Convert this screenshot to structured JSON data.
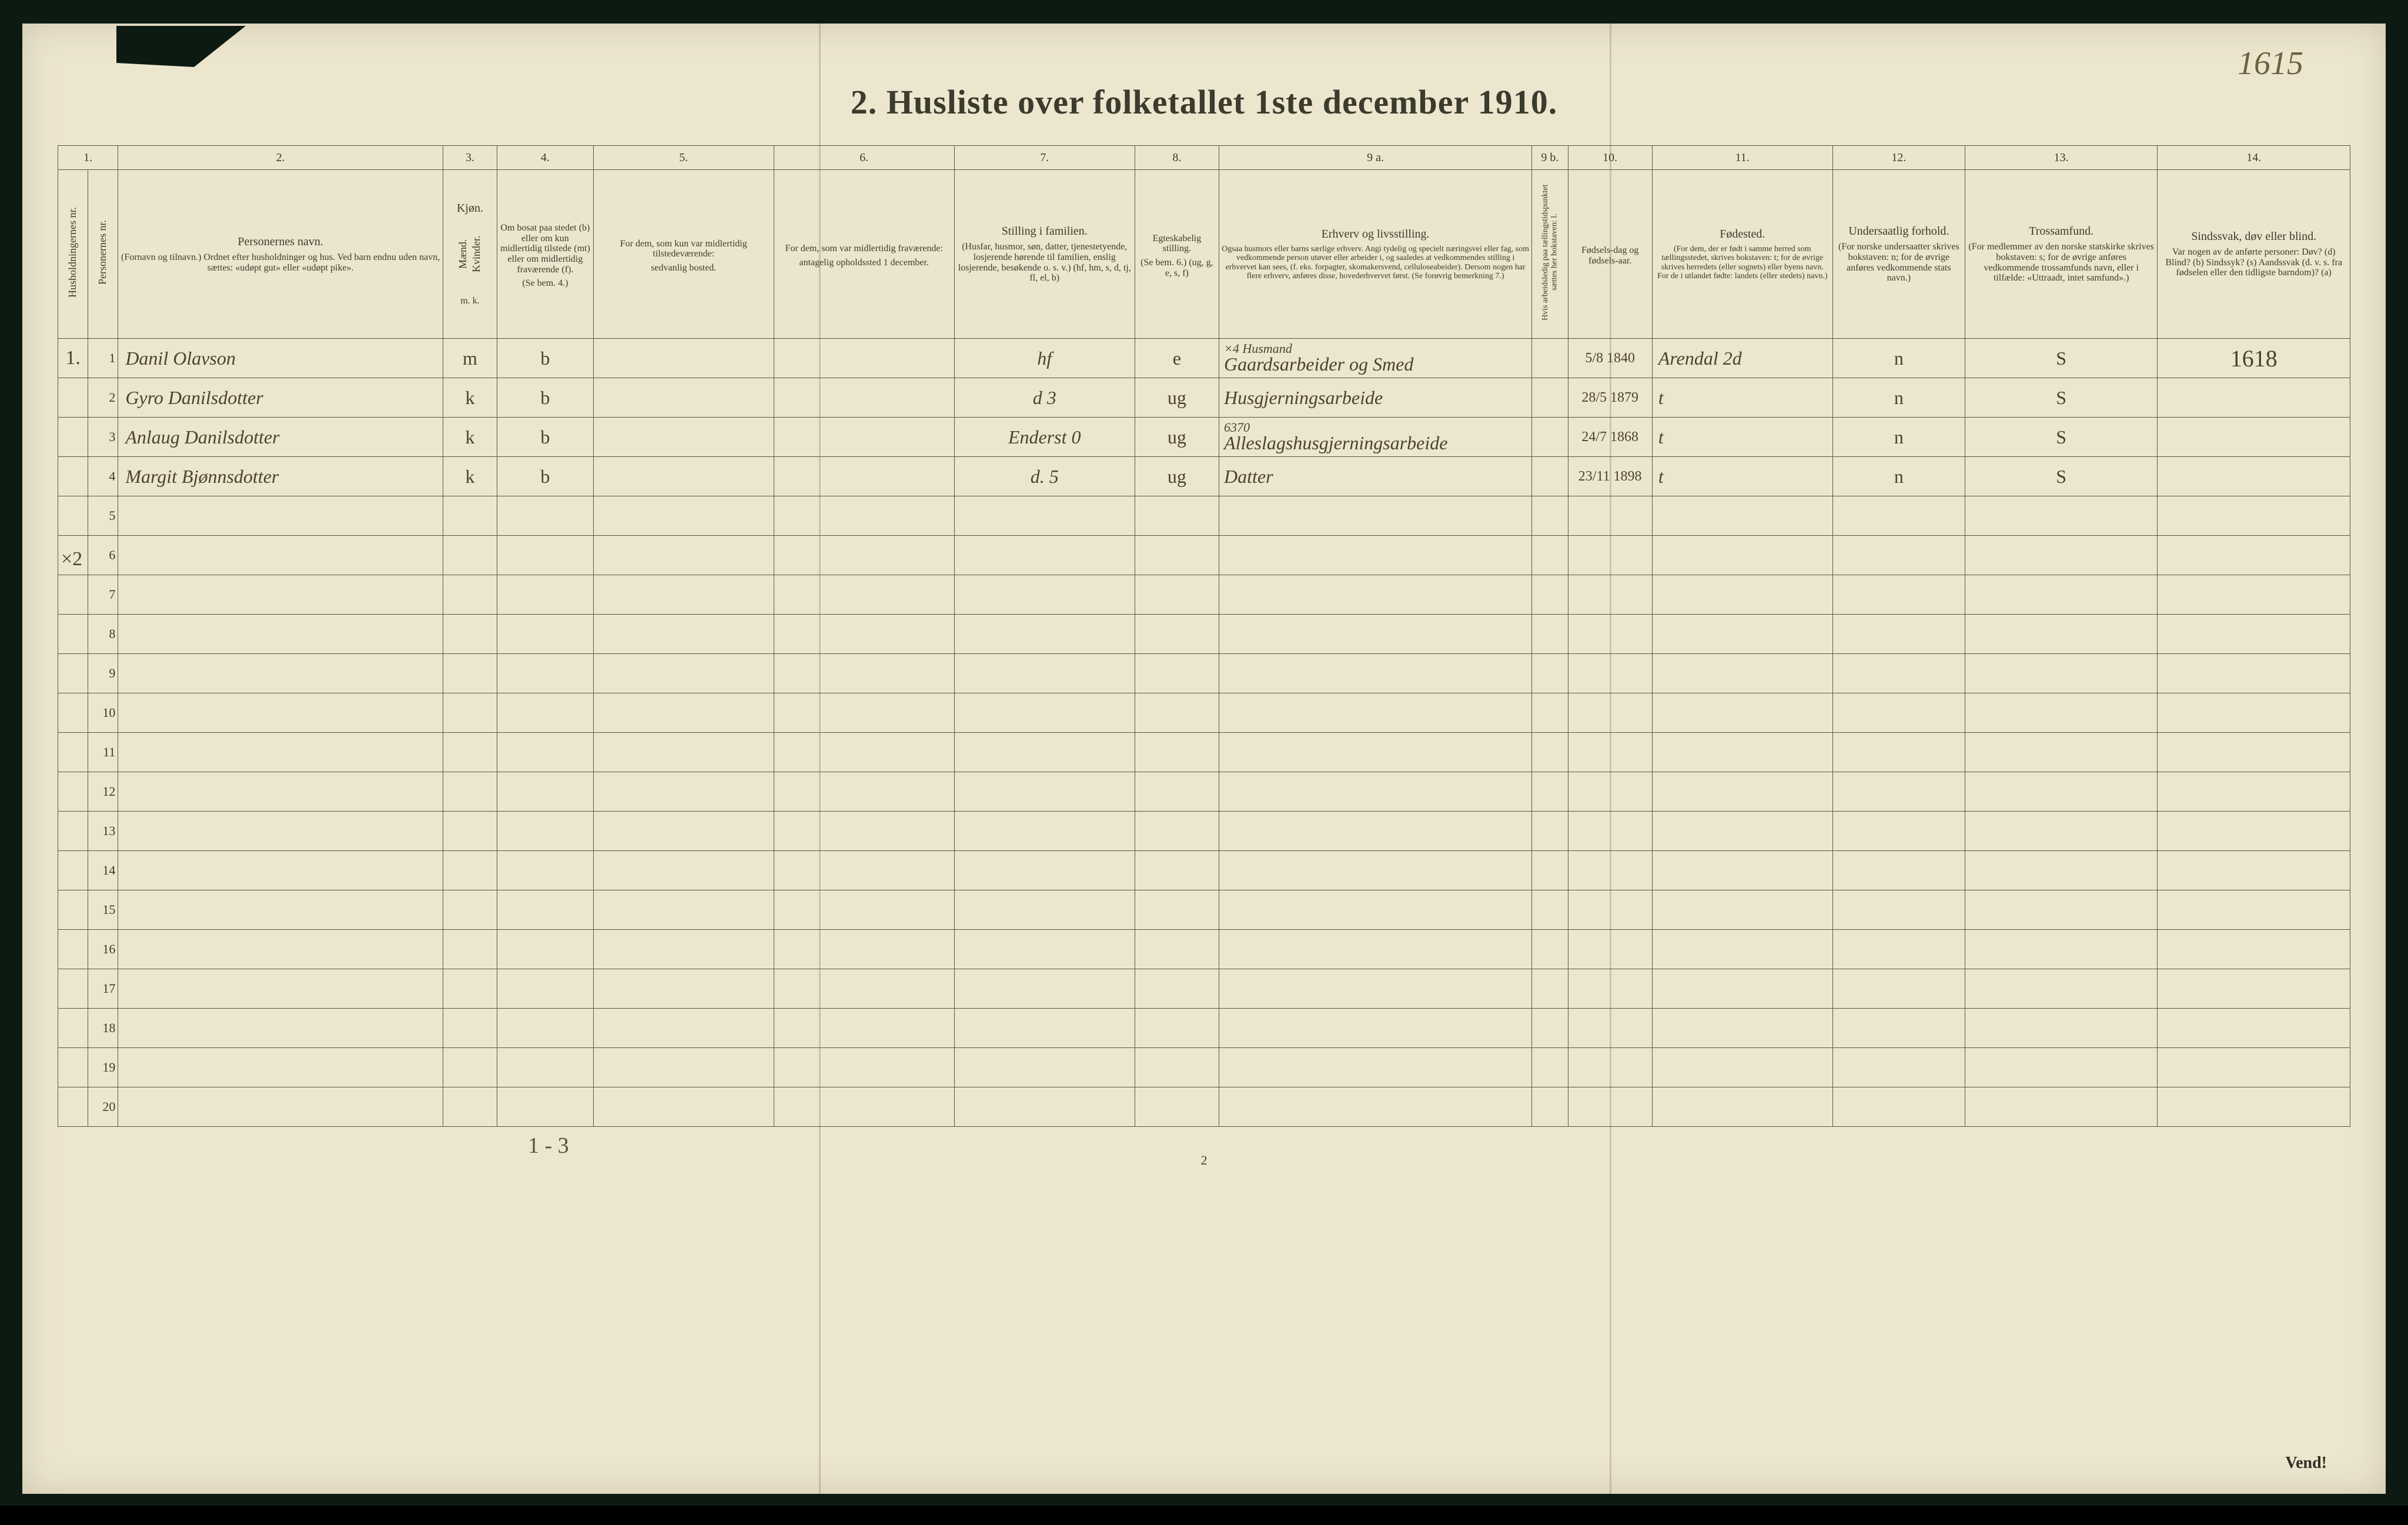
{
  "page": {
    "handwritten_top_right": "1615",
    "title": "2.  Husliste over folketallet 1ste december 1910.",
    "foot_page_number": "2",
    "vend": "Vend!",
    "bottom_pencil": "1 - 3",
    "margin_mark_left": "×2",
    "stamp_number": "1618"
  },
  "columns": {
    "numbers": [
      "1.",
      "2.",
      "3.",
      "4.",
      "5.",
      "6.",
      "7.",
      "8.",
      "9 a.",
      "9 b.",
      "10.",
      "11.",
      "12.",
      "13.",
      "14."
    ],
    "h1_split_a": "Husholdningernes nr.",
    "h1_split_b": "Personernes nr.",
    "h2": "Personernes navn.",
    "h2_note": "(Fornavn og tilnavn.)  Ordnet efter husholdninger og hus.  Ved barn endnu uden navn, sættes: «udøpt gut» eller «udøpt pike».",
    "h3": "Kjøn.",
    "h3_m": "Mænd.",
    "h3_k": "Kvinder.",
    "h3_sub": "m.  k.",
    "h4": "Om bosat paa stedet (b) eller om kun midlertidig tilstede (mt) eller om midlertidig fraværende (f).",
    "h4_note": "(Se bem. 4.)",
    "h5": "For dem, som kun var midlertidig tilstedeværende:",
    "h5_note": "sedvanlig bosted.",
    "h6": "For dem, som var midlertidig fraværende:",
    "h6_note": "antagelig opholdssted 1 december.",
    "h7": "Stilling i familien.",
    "h7_note": "(Husfar, husmor, søn, datter, tjenestetyende, losjerende hørende til familien, enslig losjerende, besøkende o. s. v.)  (hf, hm, s, d, tj, fl, el, b)",
    "h8": "Egteskabelig stilling.",
    "h8_note": "(Se bem. 6.)  (ug, g, e, s, f)",
    "h9a": "Erhverv og livsstilling.",
    "h9a_note": "Ogsaa husmors eller barns særlige erhverv.  Angi tydelig og specielt næringsvei eller fag, som vedkommende person utøver eller arbeider i, og saaledes at vedkommendes stilling i erhvervet kan sees, (f. eks. forpagter, skomakersvend, celluloseabeider).  Dersom nogen har flere erhverv, anføres disse, hovederhvervet først.  (Se forøvrig bemerkning 7.)",
    "h9b": "Hvis arbeidsledig paa tællingstidspunktet sættes her bokstaven: l.",
    "h10": "Fødsels-dag og fødsels-aar.",
    "h11": "Fødested.",
    "h11_note": "(For dem, der er født i samme herred som tællingsstedet, skrives bokstaven: t; for de øvrige skrives herredets (eller sognets) eller byens navn.  For de i utlandet fødte: landets (eller stedets) navn.)",
    "h12": "Undersaatlig forhold.",
    "h12_note": "(For norske undersaatter skrives bokstaven: n; for de øvrige anføres vedkommende stats navn.)",
    "h13": "Trossamfund.",
    "h13_note": "(For medlemmer av den norske statskirke skrives bokstaven: s; for de øvrige anføres vedkommende trossamfunds navn, eller i tilfælde: «Uttraadt, intet samfund».)",
    "h14": "Sindssvak, døv eller blind.",
    "h14_note": "Var nogen av de anførte personer:  Døv? (d)  Blind? (b)  Sindssyk? (s)  Aandssvak (d. v. s. fra fødselen eller den tidligste barndom)? (a)"
  },
  "rows": [
    {
      "hh": "1.",
      "pn": "1",
      "name": "Danil Olavson",
      "sex": "m",
      "res": "b",
      "col5": "",
      "col6": "",
      "fam": "hf",
      "eg": "e",
      "occ_top": "×4 Husmand",
      "occ": "Gaardsarbeider og Smed",
      "b9b": "",
      "bdate": "5/8 1840",
      "bplace": "Arendal 2d",
      "c12": "n",
      "c13": "S",
      "c14": ""
    },
    {
      "hh": "",
      "pn": "2",
      "name": "Gyro Danilsdotter",
      "sex": "k",
      "res": "b",
      "col5": "",
      "col6": "",
      "fam": "d      3",
      "eg": "ug",
      "occ_top": "",
      "occ": "Husgjerningsarbeide",
      "b9b": "",
      "bdate": "28/5 1879",
      "bplace": "t",
      "c12": "n",
      "c13": "S",
      "c14": ""
    },
    {
      "hh": "",
      "pn": "3",
      "name": "Anlaug Danilsdotter",
      "sex": "k",
      "res": "b",
      "col5": "",
      "col6": "",
      "fam": "Enderst   0",
      "eg": "ug",
      "occ_top": "6370",
      "occ": "Alleslagshusgjerningsarbeide",
      "b9b": "",
      "bdate": "24/7 1868",
      "bplace": "t",
      "c12": "n",
      "c13": "S",
      "c14": ""
    },
    {
      "hh": "",
      "pn": "4",
      "name": "Margit Bjønnsdotter",
      "sex": "k",
      "res": "b",
      "col5": "",
      "col6": "",
      "fam": "d.     5",
      "eg": "ug",
      "occ_top": "",
      "occ": "Datter",
      "b9b": "",
      "bdate": "23/11 1898",
      "bplace": "t",
      "c12": "n",
      "c13": "S",
      "c14": ""
    }
  ],
  "empty_rows": [
    5,
    6,
    7,
    8,
    9,
    10,
    11,
    12,
    13,
    14,
    15,
    16,
    17,
    18,
    19,
    20
  ],
  "widths": {
    "c1a": 50,
    "c1b": 50,
    "c2": 540,
    "c3": 90,
    "c4": 160,
    "c5": 300,
    "c6": 300,
    "c7": 300,
    "c8": 140,
    "c9a": 520,
    "c9b": 60,
    "c10": 140,
    "c11": 300,
    "c12": 220,
    "c13": 320,
    "c14": 320
  },
  "colors": {
    "paper": "#ede6cf",
    "ink": "#3b3b2e",
    "pencil": "#6b6340",
    "handwriting": "#4b432c",
    "border": "#565648",
    "scan_bg": "#0c1a12"
  }
}
